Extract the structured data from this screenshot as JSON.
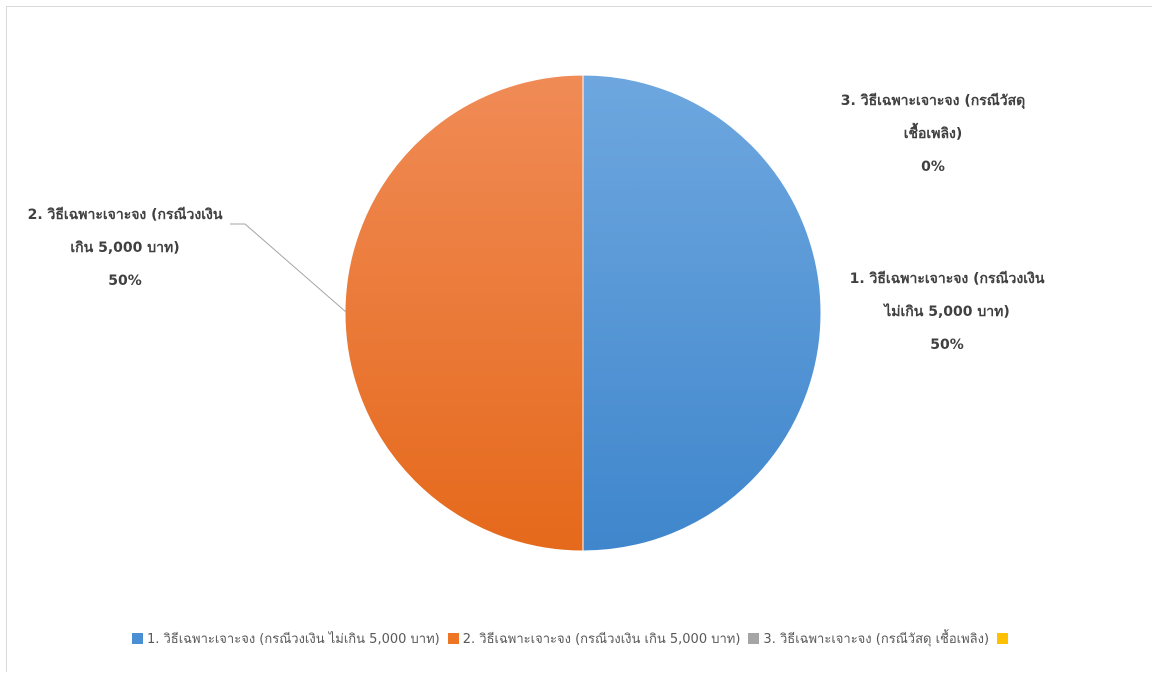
{
  "colors": {
    "series1": "#4a8fd4",
    "series2": "#ee7524",
    "series3": "#a5a5a5",
    "series4": "#ffc000"
  },
  "chart_data": {
    "type": "pie",
    "categories": [
      "1. วิธีเฉพาะเจาะจง (กรณีวงเงิน ไม่เกิน 5,000 บาท)",
      "2. วิธีเฉพาะเจาะจง (กรณีวงเงิน เกิน 5,000 บาท)",
      "3. วิธีเฉพาะเจาะจง (กรณีวัสดุ เชื้อเพลิง)",
      ""
    ],
    "values": [
      50,
      50,
      0,
      0
    ],
    "legend_position": "bottom",
    "data_labels": [
      {
        "line1": "1. วิธีเฉพาะเจาะจง (กรณีวงเงิน",
        "line2": "ไม่เกิน 5,000 บาท)",
        "pct": "50%"
      },
      {
        "line1": "2. วิธีเฉพาะเจาะจง (กรณีวงเงิน",
        "line2": "เกิน 5,000 บาท)",
        "pct": "50%"
      },
      {
        "line1": "3. วิธีเฉพาะเจาะจง (กรณีวัสดุ",
        "line2": "เชื้อเพลิง)",
        "pct": "0%"
      }
    ]
  }
}
